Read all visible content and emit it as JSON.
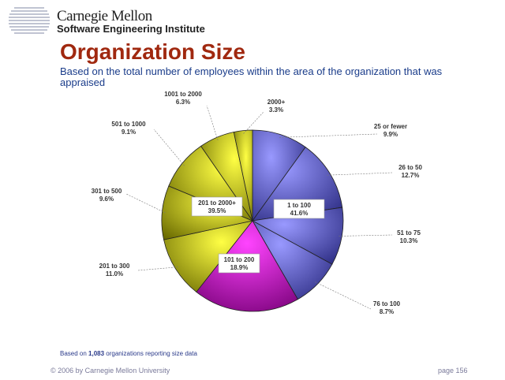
{
  "header": {
    "logo_line1": "Carnegie Mellon",
    "logo_line2": "Software Engineering Institute"
  },
  "title": "Organization Size",
  "subtitle": "Based on the total number of employees within the area of the organization that was appraised",
  "note": {
    "prefix": "Based on ",
    "count": "1,083",
    "suffix": " organizations reporting size data"
  },
  "footer": {
    "copyright": "© 2006 by Carnegie Mellon University",
    "page": "page 156"
  },
  "colors": {
    "blue_light": "#8888ff",
    "blue_dark": "#333388",
    "yellow_light": "#ffff33",
    "yellow_dark": "#777700",
    "magenta_light": "#ff33ff",
    "magenta_dark": "#880088"
  },
  "chart_data": {
    "type": "pie",
    "start_angle_deg": 0,
    "direction": "clockwise",
    "slices": [
      {
        "label": "25 or fewer",
        "value": 9.9,
        "value_label": "9.9%",
        "group": "blue"
      },
      {
        "label": "26 to 50",
        "value": 12.7,
        "value_label": "12.7%",
        "group": "blue"
      },
      {
        "label": "51 to 75",
        "value": 10.3,
        "value_label": "10.3%",
        "group": "blue"
      },
      {
        "label": "76 to 100",
        "value": 8.7,
        "value_label": "8.7%",
        "group": "blue"
      },
      {
        "label": "101 to 200",
        "value": 18.9,
        "value_label": "18.9%",
        "group": "magenta"
      },
      {
        "label": "201 to 300",
        "value": 11.0,
        "value_label": "11.0%",
        "group": "yellow"
      },
      {
        "label": "301 to 500",
        "value": 9.6,
        "value_label": "9.6%",
        "group": "yellow"
      },
      {
        "label": "501 to 1000",
        "value": 9.1,
        "value_label": "9.1%",
        "group": "yellow"
      },
      {
        "label": "1001 to 2000",
        "value": 6.3,
        "value_label": "6.3%",
        "group": "yellow"
      },
      {
        "label": "2000+",
        "value": 3.3,
        "value_label": "3.3%",
        "group": "yellow"
      }
    ],
    "group_labels": [
      {
        "group": "blue",
        "label": "1 to 100",
        "value_label": "41.6%"
      },
      {
        "group": "magenta",
        "label": "101 to 200",
        "value_label": "18.9%"
      },
      {
        "group": "yellow",
        "label": "201 to 2000+",
        "value_label": "39.5%"
      }
    ]
  }
}
